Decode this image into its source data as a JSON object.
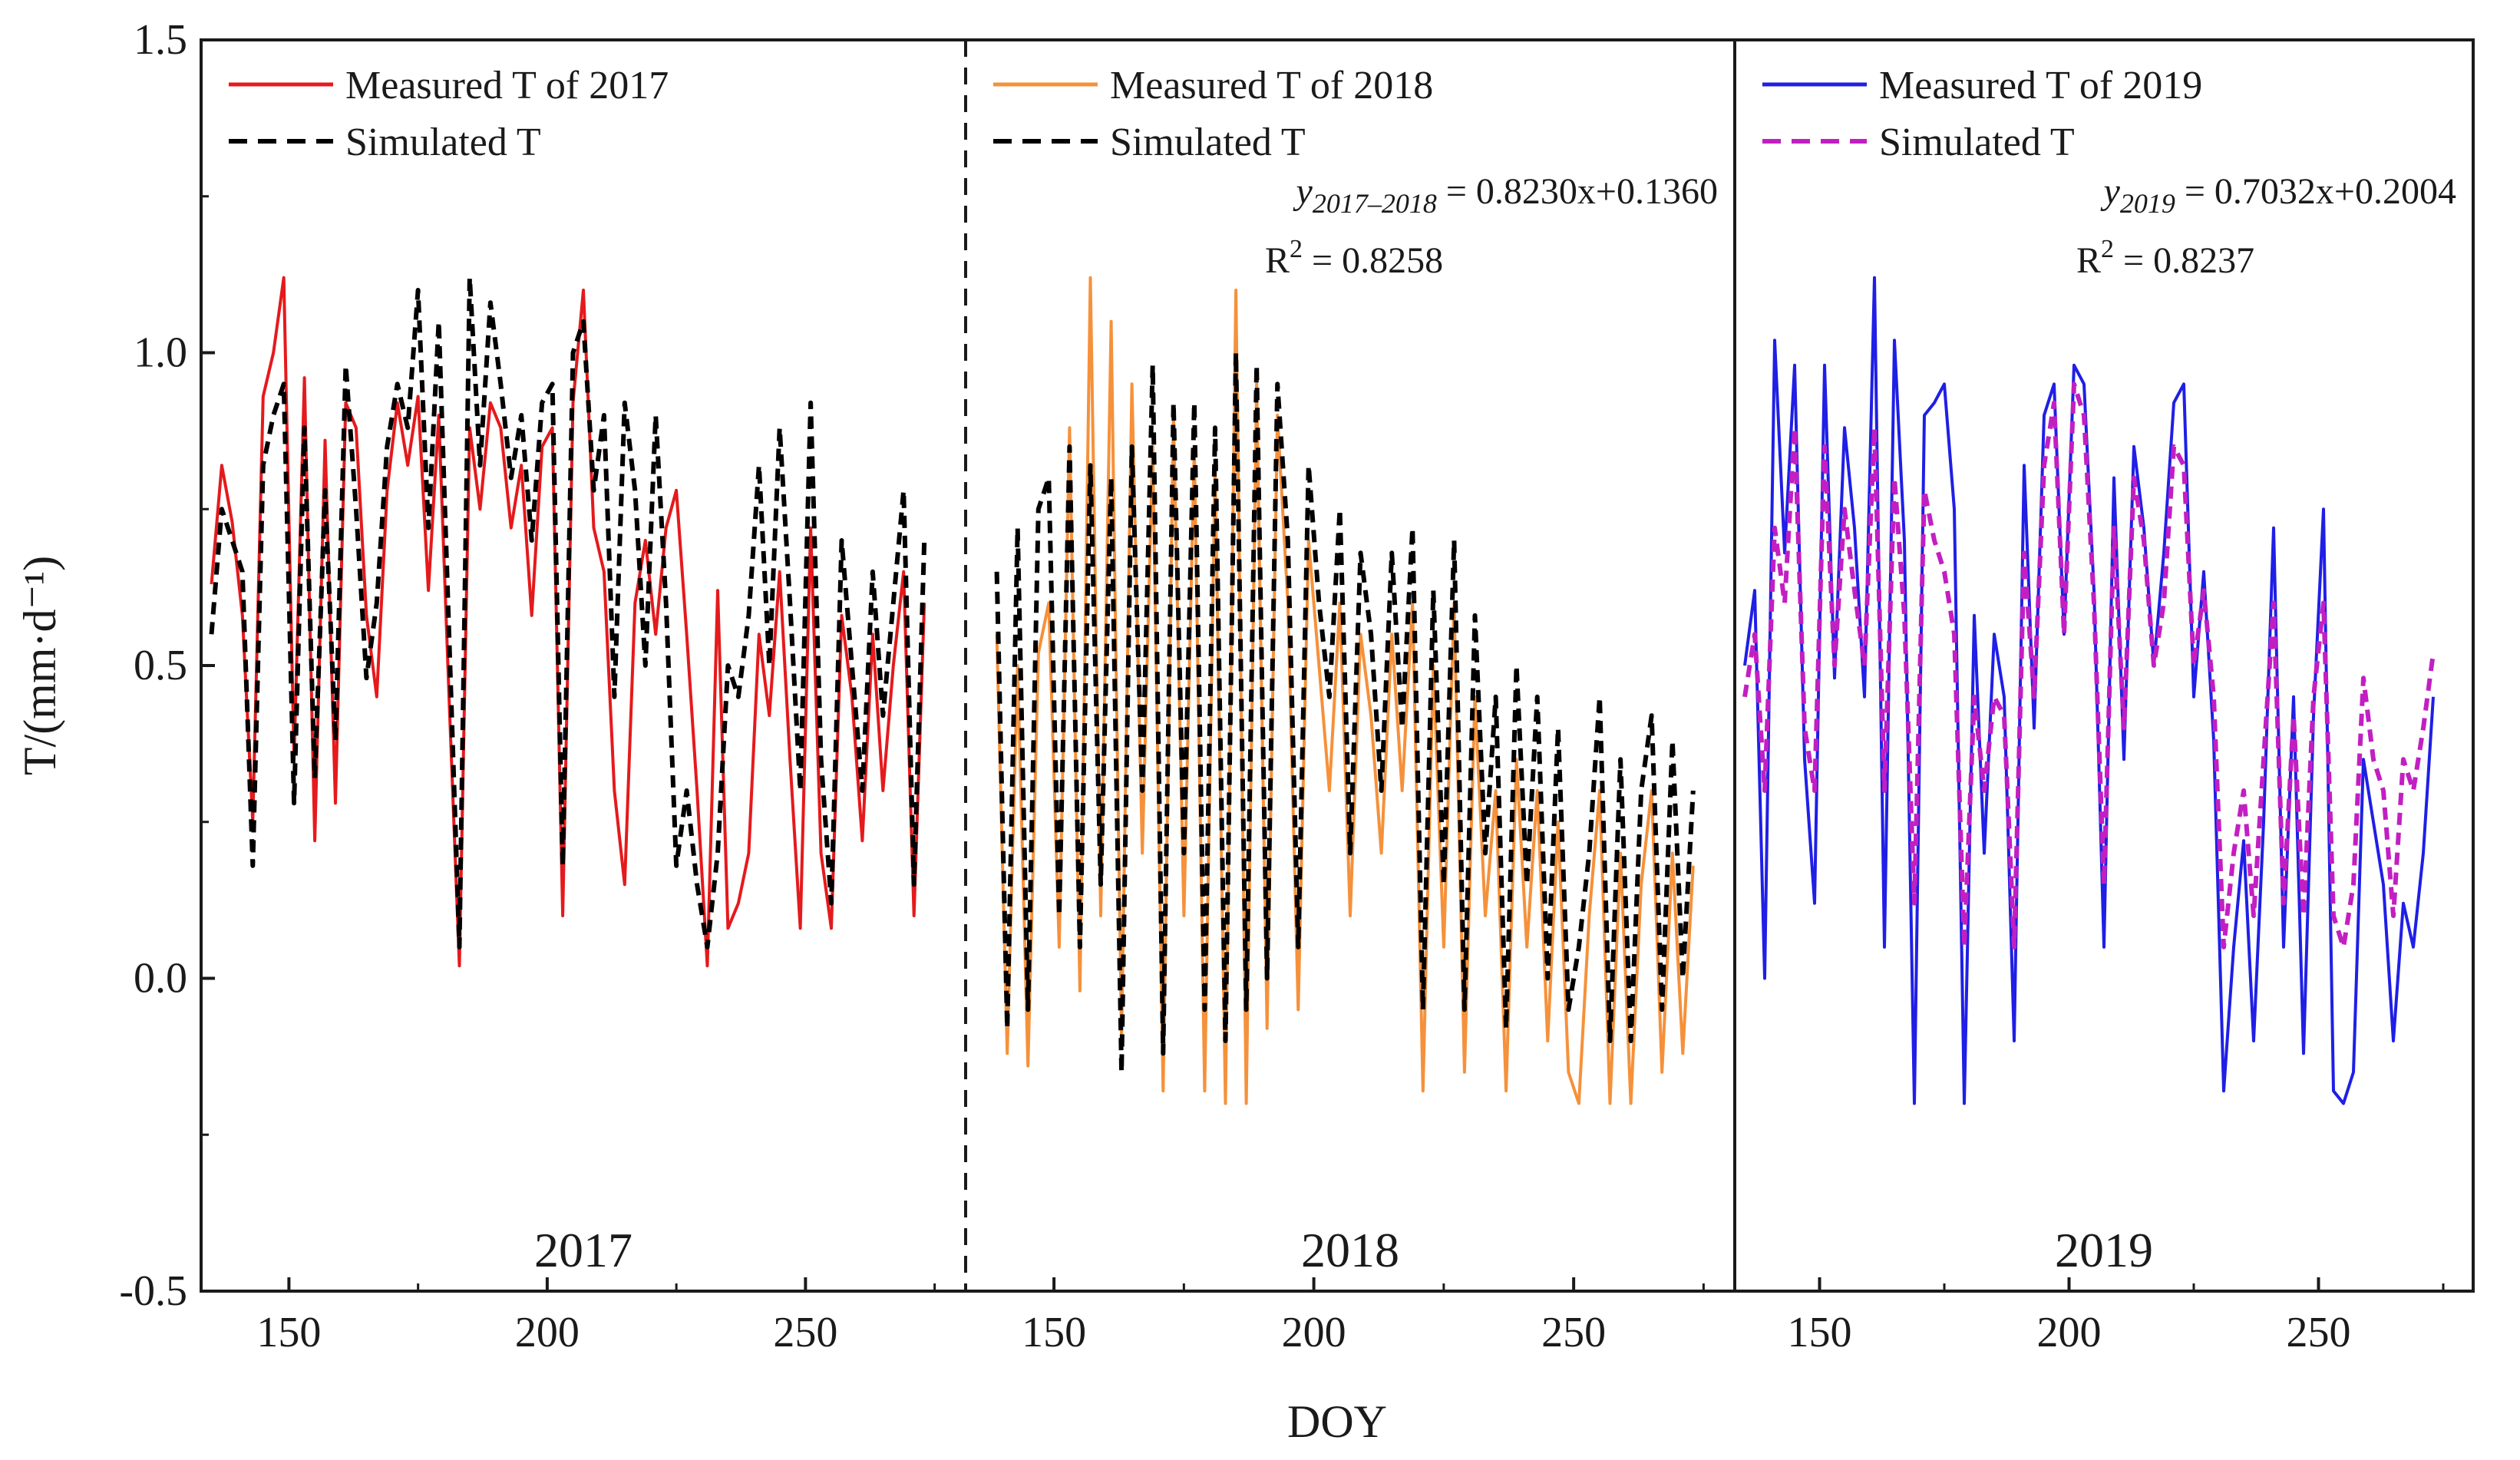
{
  "chart_data": {
    "type": "line",
    "xlabel": "DOY",
    "ylabel": "T/(mm·d⁻¹)",
    "ylim": [
      -0.5,
      1.5
    ],
    "y_ticks": [
      "-0.5",
      "0.0",
      "0.5",
      "1.0",
      "1.5"
    ],
    "x_ticks": [
      "150",
      "200",
      "250"
    ],
    "panels": [
      {
        "year_label": "2017",
        "xlim": [
          133,
          281
        ],
        "divider_after": "dashed",
        "legend": [
          {
            "label": "Measured T of 2017",
            "style": "solid",
            "color": "#e41a1c"
          },
          {
            "label": "Simulated T",
            "style": "dashed",
            "color": "#000000"
          }
        ],
        "equation": null,
        "series": [
          {
            "name": "Measured T of 2017",
            "color": "#e41a1c",
            "style": "solid",
            "x": [
              135,
              137,
              139,
              141,
              143,
              145,
              147,
              149,
              151,
              153,
              155,
              157,
              159,
              161,
              163,
              165,
              167,
              169,
              171,
              173,
              175,
              177,
              179,
              181,
              183,
              185,
              187,
              189,
              191,
              193,
              195,
              197,
              199,
              201,
              203,
              205,
              207,
              209,
              211,
              213,
              215,
              217,
              219,
              221,
              223,
              225,
              227,
              229,
              231,
              233,
              235,
              237,
              239,
              241,
              243,
              245,
              247,
              249,
              251,
              253,
              255,
              257,
              259,
              261,
              263,
              265,
              267,
              269,
              271,
              273
            ],
            "y": [
              0.63,
              0.82,
              0.73,
              0.58,
              0.25,
              0.93,
              1.0,
              1.12,
              0.35,
              0.96,
              0.22,
              0.86,
              0.28,
              0.92,
              0.88,
              0.58,
              0.45,
              0.78,
              0.92,
              0.82,
              0.93,
              0.62,
              0.9,
              0.45,
              0.02,
              0.88,
              0.75,
              0.92,
              0.88,
              0.72,
              0.82,
              0.58,
              0.85,
              0.88,
              0.1,
              0.92,
              1.1,
              0.72,
              0.65,
              0.3,
              0.15,
              0.6,
              0.7,
              0.55,
              0.72,
              0.78,
              0.55,
              0.3,
              0.02,
              0.62,
              0.08,
              0.12,
              0.2,
              0.55,
              0.42,
              0.65,
              0.35,
              0.08,
              0.72,
              0.2,
              0.08,
              0.58,
              0.45,
              0.22,
              0.55,
              0.3,
              0.5,
              0.65,
              0.1,
              0.6
            ]
          },
          {
            "name": "Simulated T",
            "color": "#000000",
            "style": "dashed",
            "x": [
              135,
              137,
              139,
              141,
              143,
              145,
              147,
              149,
              151,
              153,
              155,
              157,
              159,
              161,
              163,
              165,
              167,
              169,
              171,
              173,
              175,
              177,
              179,
              181,
              183,
              185,
              187,
              189,
              191,
              193,
              195,
              197,
              199,
              201,
              203,
              205,
              207,
              209,
              211,
              213,
              215,
              217,
              219,
              221,
              223,
              225,
              227,
              229,
              231,
              233,
              235,
              237,
              239,
              241,
              243,
              245,
              247,
              249,
              251,
              253,
              255,
              257,
              259,
              261,
              263,
              265,
              267,
              269,
              271,
              273
            ],
            "y": [
              0.55,
              0.75,
              0.7,
              0.65,
              0.18,
              0.82,
              0.9,
              0.95,
              0.28,
              0.88,
              0.32,
              0.78,
              0.38,
              0.98,
              0.75,
              0.48,
              0.6,
              0.85,
              0.95,
              0.88,
              1.1,
              0.72,
              1.05,
              0.55,
              0.05,
              1.12,
              0.82,
              1.08,
              0.95,
              0.8,
              0.9,
              0.7,
              0.92,
              0.95,
              0.18,
              1.0,
              1.05,
              0.78,
              0.9,
              0.45,
              0.92,
              0.78,
              0.5,
              0.9,
              0.6,
              0.18,
              0.3,
              0.15,
              0.05,
              0.2,
              0.5,
              0.45,
              0.58,
              0.82,
              0.5,
              0.88,
              0.6,
              0.3,
              0.92,
              0.35,
              0.12,
              0.7,
              0.5,
              0.3,
              0.65,
              0.42,
              0.6,
              0.78,
              0.15,
              0.7
            ]
          }
        ]
      },
      {
        "year_label": "2018",
        "xlim": [
          133,
          281
        ],
        "divider_after": "solid",
        "legend": [
          {
            "label": "Measured T of 2018",
            "style": "solid",
            "color": "#f5913b"
          },
          {
            "label": "Simulated T",
            "style": "dashed",
            "color": "#000000"
          }
        ],
        "equation": {
          "lhs_var": "y",
          "lhs_subscript": "2017–2018",
          "rhs": " = 0.8230x+0.1360",
          "r2_base": "R",
          "r2_exp": "2",
          "r2_value": " = 0.8258"
        },
        "series": [
          {
            "name": "Measured T of 2018",
            "color": "#f5913b",
            "style": "solid",
            "x": [
              139,
              141,
              143,
              145,
              147,
              149,
              151,
              153,
              155,
              157,
              159,
              161,
              163,
              165,
              167,
              169,
              171,
              173,
              175,
              177,
              179,
              181,
              183,
              185,
              187,
              189,
              191,
              193,
              195,
              197,
              199,
              201,
              203,
              205,
              207,
              209,
              211,
              213,
              215,
              217,
              219,
              221,
              223,
              225,
              227,
              229,
              231,
              233,
              235,
              237,
              239,
              241,
              243,
              245,
              247,
              249,
              251,
              253,
              255,
              257,
              259,
              261,
              263,
              265,
              267,
              269,
              271,
              273
            ],
            "y": [
              0.55,
              -0.12,
              0.5,
              -0.14,
              0.52,
              0.6,
              0.05,
              0.88,
              -0.02,
              1.12,
              0.1,
              1.05,
              -0.1,
              0.95,
              0.2,
              0.85,
              -0.18,
              0.9,
              0.1,
              0.85,
              -0.18,
              0.82,
              -0.2,
              1.1,
              -0.2,
              0.95,
              -0.08,
              0.9,
              0.6,
              -0.05,
              0.7,
              0.5,
              0.3,
              0.6,
              0.1,
              0.55,
              0.42,
              0.2,
              0.55,
              0.3,
              0.6,
              -0.18,
              0.5,
              0.05,
              0.6,
              -0.15,
              0.45,
              0.1,
              0.3,
              -0.18,
              0.35,
              0.05,
              0.3,
              -0.1,
              0.25,
              -0.15,
              -0.2,
              0.1,
              0.3,
              -0.2,
              0.2,
              -0.2,
              0.15,
              0.3,
              -0.15,
              0.2,
              -0.12,
              0.18
            ]
          },
          {
            "name": "Simulated T",
            "color": "#000000",
            "style": "dashed",
            "x": [
              139,
              141,
              143,
              145,
              147,
              149,
              151,
              153,
              155,
              157,
              159,
              161,
              163,
              165,
              167,
              169,
              171,
              173,
              175,
              177,
              179,
              181,
              183,
              185,
              187,
              189,
              191,
              193,
              195,
              197,
              199,
              201,
              203,
              205,
              207,
              209,
              211,
              213,
              215,
              217,
              219,
              221,
              223,
              225,
              227,
              229,
              231,
              233,
              235,
              237,
              239,
              241,
              243,
              245,
              247,
              249,
              251,
              253,
              255,
              257,
              259,
              261,
              263,
              265,
              267,
              269,
              271,
              273
            ],
            "y": [
              0.65,
              -0.08,
              0.72,
              -0.05,
              0.75,
              0.8,
              0.1,
              0.85,
              0.05,
              0.82,
              0.15,
              0.8,
              -0.15,
              0.85,
              0.3,
              0.98,
              -0.12,
              0.92,
              0.2,
              0.92,
              -0.05,
              0.88,
              -0.1,
              1.0,
              -0.05,
              0.98,
              0.0,
              0.95,
              0.7,
              0.05,
              0.82,
              0.6,
              0.45,
              0.75,
              0.2,
              0.68,
              0.55,
              0.3,
              0.68,
              0.4,
              0.72,
              -0.05,
              0.62,
              0.15,
              0.7,
              -0.05,
              0.58,
              0.2,
              0.45,
              -0.08,
              0.5,
              0.15,
              0.45,
              0.0,
              0.4,
              -0.05,
              0.05,
              0.2,
              0.45,
              -0.1,
              0.35,
              -0.1,
              0.3,
              0.42,
              -0.05,
              0.38,
              0.0,
              0.3
            ]
          }
        ]
      },
      {
        "year_label": "2019",
        "xlim": [
          133,
          281
        ],
        "divider_after": null,
        "legend": [
          {
            "label": "Measured T of 2019",
            "style": "solid",
            "color": "#1f1fe6"
          },
          {
            "label": "Simulated T",
            "style": "dashed",
            "color": "#c21fc2"
          }
        ],
        "equation": {
          "lhs_var": "y",
          "lhs_subscript": "2019",
          "rhs": " = 0.7032x+0.2004",
          "r2_base": "R",
          "r2_exp": "2",
          "r2_value": " = 0.8237"
        },
        "series": [
          {
            "name": "Measured T of 2019",
            "color": "#1f1fe6",
            "style": "solid",
            "x": [
              135,
              137,
              139,
              141,
              143,
              145,
              147,
              149,
              151,
              153,
              155,
              157,
              159,
              161,
              163,
              165,
              167,
              169,
              171,
              173,
              175,
              177,
              179,
              181,
              183,
              185,
              187,
              189,
              191,
              193,
              195,
              197,
              199,
              201,
              203,
              205,
              207,
              209,
              211,
              213,
              215,
              217,
              219,
              221,
              223,
              225,
              227,
              229,
              231,
              233,
              235,
              237,
              239,
              241,
              243,
              245,
              247,
              249,
              251,
              253,
              255,
              257,
              259,
              261,
              263,
              265,
              267,
              269,
              271,
              273
            ],
            "y": [
              0.5,
              0.62,
              0.0,
              1.02,
              0.68,
              0.98,
              0.35,
              0.12,
              0.98,
              0.48,
              0.88,
              0.72,
              0.45,
              1.12,
              0.05,
              1.02,
              0.7,
              -0.2,
              0.9,
              0.92,
              0.95,
              0.75,
              -0.2,
              0.58,
              0.2,
              0.55,
              0.45,
              -0.1,
              0.82,
              0.4,
              0.9,
              0.95,
              0.55,
              0.98,
              0.95,
              0.62,
              0.05,
              0.8,
              0.35,
              0.85,
              0.72,
              0.5,
              0.68,
              0.92,
              0.95,
              0.45,
              0.65,
              0.38,
              -0.18,
              0.05,
              0.22,
              -0.1,
              0.25,
              0.72,
              0.05,
              0.45,
              -0.12,
              0.42,
              0.75,
              -0.18,
              -0.2,
              -0.15,
              0.35,
              0.25,
              0.15,
              -0.1,
              0.12,
              0.05,
              0.2,
              0.45
            ]
          },
          {
            "name": "Simulated T",
            "color": "#c21fc2",
            "style": "dashed",
            "x": [
              135,
              137,
              139,
              141,
              143,
              145,
              147,
              149,
              151,
              153,
              155,
              157,
              159,
              161,
              163,
              165,
              167,
              169,
              171,
              173,
              175,
              177,
              179,
              181,
              183,
              185,
              187,
              189,
              191,
              193,
              195,
              197,
              199,
              201,
              203,
              205,
              207,
              209,
              211,
              213,
              215,
              217,
              219,
              221,
              223,
              225,
              227,
              229,
              231,
              233,
              235,
              237,
              239,
              241,
              243,
              245,
              247,
              249,
              251,
              253,
              255,
              257,
              259,
              261,
              263,
              265,
              267,
              269,
              271,
              273
            ],
            "y": [
              0.45,
              0.55,
              0.3,
              0.72,
              0.6,
              0.88,
              0.4,
              0.3,
              0.85,
              0.5,
              0.75,
              0.62,
              0.5,
              0.88,
              0.3,
              0.8,
              0.58,
              0.12,
              0.78,
              0.7,
              0.65,
              0.55,
              0.05,
              0.45,
              0.3,
              0.45,
              0.42,
              0.05,
              0.68,
              0.45,
              0.82,
              0.92,
              0.55,
              0.95,
              0.9,
              0.6,
              0.15,
              0.72,
              0.4,
              0.8,
              0.7,
              0.5,
              0.6,
              0.85,
              0.82,
              0.5,
              0.62,
              0.45,
              0.05,
              0.2,
              0.3,
              0.1,
              0.35,
              0.6,
              0.12,
              0.42,
              0.1,
              0.45,
              0.6,
              0.1,
              0.05,
              0.15,
              0.48,
              0.35,
              0.3,
              0.1,
              0.35,
              0.3,
              0.4,
              0.52
            ]
          }
        ]
      }
    ]
  }
}
